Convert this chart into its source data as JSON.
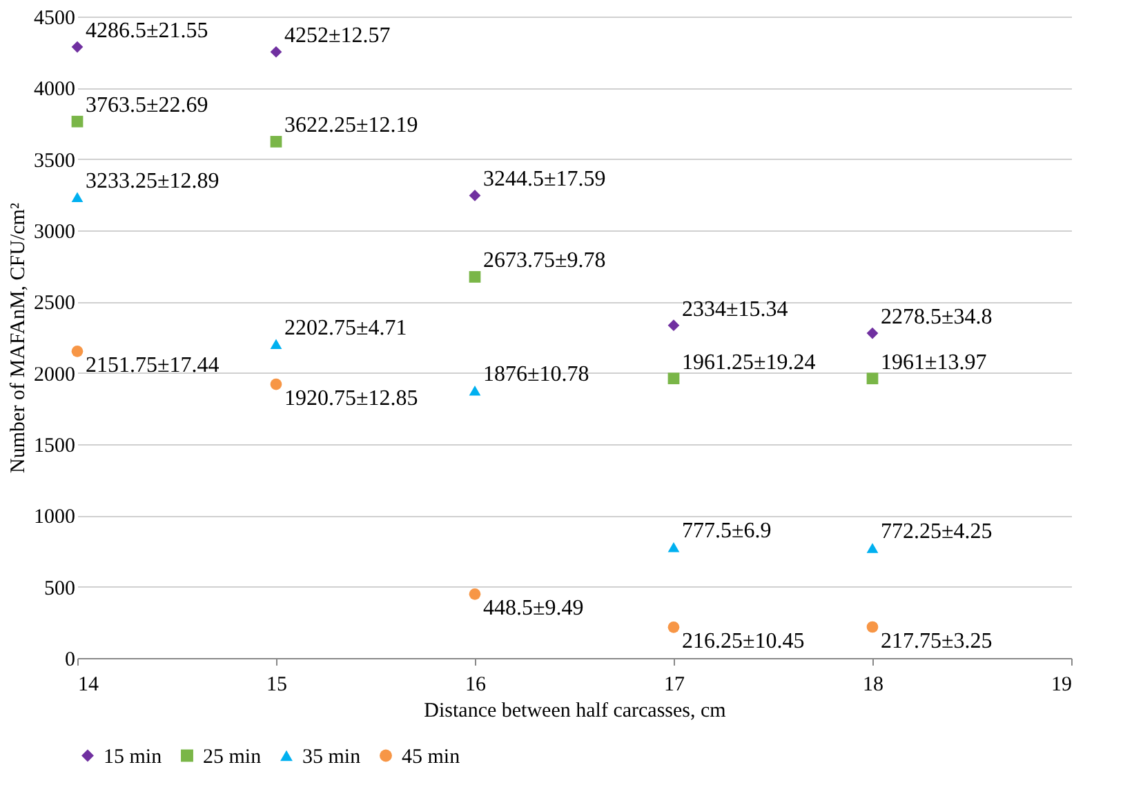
{
  "chart_data": {
    "type": "scatter",
    "xlabel": "Distance between half carcasses, cm",
    "ylabel": "Number of MAFAnM, CFU/cm²",
    "x": [
      14,
      15,
      16,
      17,
      18
    ],
    "series": [
      {
        "name": "15 min",
        "color": "#7030a0",
        "marker": "diamond",
        "values": [
          4286.5,
          4252,
          3244.5,
          2334,
          2278.5
        ],
        "value_labels": [
          "4286.5±21.55",
          "4252±12.57",
          "3244.5±17.59",
          "2334±15.34",
          "2278.5±34.8"
        ]
      },
      {
        "name": "25 min",
        "color": "#7ab648",
        "marker": "square",
        "values": [
          3763.5,
          3622.25,
          2673.75,
          1961.25,
          1961
        ],
        "value_labels": [
          "3763.5±22.69",
          "3622.25±12.19",
          "2673.75±9.78",
          "1961.25±19.24",
          "1961±13.97"
        ]
      },
      {
        "name": "35 min",
        "color": "#00b0f0",
        "marker": "triangle",
        "values": [
          3233.25,
          2202.75,
          1876,
          777.5,
          772.25
        ],
        "value_labels": [
          "3233.25±12.89",
          "2202.75±4.71",
          "1876±10.78",
          "777.5±6.9",
          "772.25±4.25"
        ]
      },
      {
        "name": "45 min",
        "color": "#f79646",
        "marker": "circle",
        "values": [
          2151.75,
          1920.75,
          448.5,
          216.25,
          217.75
        ],
        "value_labels": [
          "2151.75±17.44",
          "1920.75±12.85",
          "448.5±9.49",
          "216.25±10.45",
          "217.75±3.25"
        ]
      }
    ],
    "xlim": [
      14,
      19
    ],
    "xticks": [
      14,
      15,
      16,
      17,
      18,
      19
    ],
    "ylim": [
      0,
      4500
    ],
    "yticks": [
      0,
      500,
      1000,
      1500,
      2000,
      2500,
      3000,
      3500,
      4000,
      4500
    ],
    "grid": "y",
    "legend": "bottom"
  }
}
